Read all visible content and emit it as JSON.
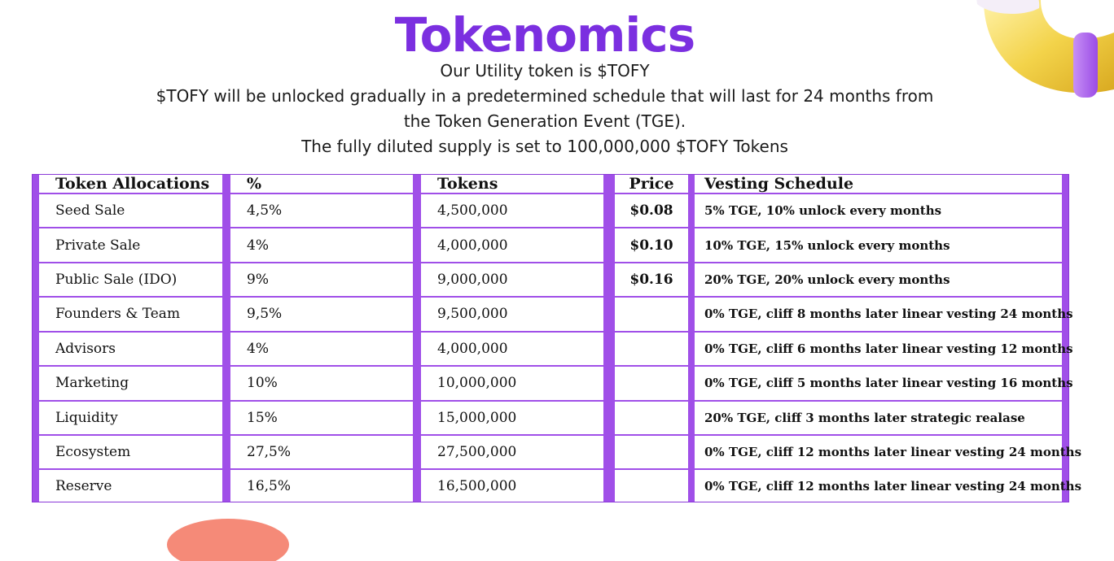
{
  "header": {
    "title": "Tokenomics",
    "lines": [
      "Our Utility token is $TOFY",
      "$TOFY will be unlocked gradually in a predetermined schedule that will last for 24 months from",
      "the Token Generation Event (TGE).",
      "The fully diluted supply is set to 100,000,000 $TOFY Tokens"
    ]
  },
  "table": {
    "headers": {
      "allocation": "Token Allocations",
      "percent": "%",
      "tokens": "Tokens",
      "price": "Price",
      "vesting": "Vesting Schedule"
    },
    "rows": [
      {
        "allocation": "Seed Sale",
        "percent": "4,5%",
        "tokens": "4,500,000",
        "price": "$0.08",
        "vesting": "5% TGE, 10% unlock every months"
      },
      {
        "allocation": "Private Sale",
        "percent": "4%",
        "tokens": "4,000,000",
        "price": "$0.10",
        "vesting": "10% TGE, 15% unlock every months"
      },
      {
        "allocation": "Public Sale (IDO)",
        "percent": "9%",
        "tokens": "9,000,000",
        "price": "$0.16",
        "vesting": "20% TGE, 20% unlock every months"
      },
      {
        "allocation": "Founders & Team",
        "percent": "9,5%",
        "tokens": "9,500,000",
        "price": "",
        "vesting": "0% TGE, cliff 8 months later linear vesting 24 months"
      },
      {
        "allocation": "Advisors",
        "percent": "4%",
        "tokens": "4,000,000",
        "price": "",
        "vesting": "0% TGE, cliff 6 months later linear vesting 12 months"
      },
      {
        "allocation": "Marketing",
        "percent": "10%",
        "tokens": "10,000,000",
        "price": "",
        "vesting": "0% TGE, cliff 5 months later linear vesting 16 months"
      },
      {
        "allocation": "Liquidity",
        "percent": "15%",
        "tokens": "15,000,000",
        "price": "",
        "vesting": "20% TGE, cliff 3 months later strategic realase"
      },
      {
        "allocation": "Ecosystem",
        "percent": "27,5%",
        "tokens": "27,500,000",
        "price": "",
        "vesting": "0% TGE, cliff 12 months later linear vesting 24 months"
      },
      {
        "allocation": "Reserve",
        "percent": "16,5%",
        "tokens": "16,500,000",
        "price": "",
        "vesting": "0% TGE, cliff 12 months later linear vesting 24 months"
      }
    ]
  },
  "colors": {
    "accent": "#7b2fe0",
    "table_border": "#a04fe8",
    "decor_yellow": "#f3d34a",
    "decor_purple": "#b16ef0",
    "decor_coral": "#f58a78"
  },
  "icons": {
    "top_right": "yellow-tube-3d-icon",
    "bottom_left": "coral-blob-3d-icon"
  }
}
